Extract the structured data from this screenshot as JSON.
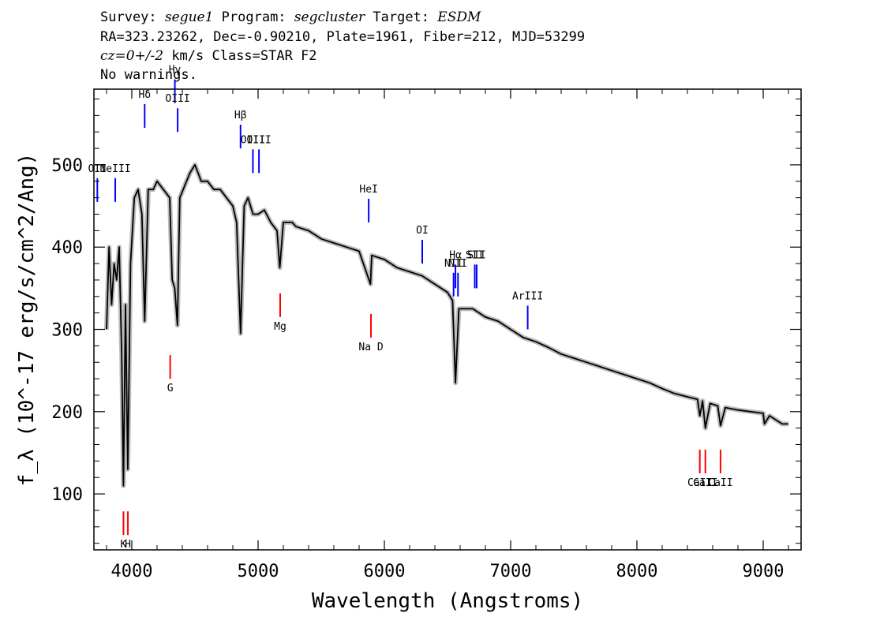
{
  "header": {
    "line1": {
      "survey_label": "Survey:",
      "survey": "segue1",
      "program_label": "Program:",
      "program": "segcluster",
      "target_label": "Target:",
      "target": "ESDM"
    },
    "line2": "RA=323.23262, Dec=-0.90210, Plate=1961, Fiber=212, MJD=53299",
    "line3": {
      "cz": "cz=0+/-2",
      "rest": " km/s Class=STAR F2"
    },
    "line4": "No warnings."
  },
  "chart_data": {
    "type": "line",
    "xlabel": "Wavelength (Angstroms)",
    "ylabel": "f_λ (10^-17 erg/s/cm^2/Ang)",
    "xlim": [
      3700,
      9300
    ],
    "ylim": [
      32,
      592
    ],
    "xticks": [
      4000,
      5000,
      6000,
      7000,
      8000,
      9000
    ],
    "yticks": [
      100,
      200,
      300,
      400,
      500
    ],
    "grid": false,
    "series": [
      {
        "color": "#000000",
        "error_color": "#bbbbbb",
        "x": [
          3800,
          3820,
          3840,
          3860,
          3880,
          3900,
          3920,
          3934,
          3950,
          3968,
          3990,
          4020,
          4050,
          4080,
          4102,
          4130,
          4170,
          4200,
          4250,
          4300,
          4320,
          4340,
          4361,
          4380,
          4420,
          4460,
          4500,
          4550,
          4600,
          4650,
          4700,
          4750,
          4800,
          4830,
          4861,
          4890,
          4920,
          4960,
          5000,
          5050,
          5100,
          5150,
          5172,
          5200,
          5270,
          5300,
          5400,
          5500,
          5600,
          5700,
          5800,
          5890,
          5900,
          6000,
          6100,
          6200,
          6300,
          6400,
          6500,
          6540,
          6563,
          6590,
          6650,
          6700,
          6800,
          6900,
          7000,
          7100,
          7200,
          7300,
          7400,
          7500,
          7600,
          7700,
          7800,
          7900,
          8000,
          8100,
          8200,
          8300,
          8400,
          8480,
          8498,
          8520,
          8542,
          8580,
          8640,
          8662,
          8700,
          8800,
          8900,
          9000,
          9010,
          9050,
          9100,
          9150,
          9200
        ],
        "y": [
          300,
          400,
          330,
          380,
          360,
          400,
          270,
          110,
          330,
          130,
          380,
          460,
          470,
          440,
          310,
          470,
          470,
          480,
          470,
          460,
          360,
          350,
          305,
          460,
          475,
          490,
          500,
          480,
          480,
          470,
          470,
          460,
          450,
          430,
          295,
          450,
          460,
          440,
          440,
          445,
          430,
          420,
          375,
          430,
          430,
          425,
          420,
          410,
          405,
          400,
          395,
          355,
          390,
          385,
          375,
          370,
          365,
          355,
          345,
          335,
          235,
          325,
          325,
          325,
          315,
          310,
          300,
          290,
          285,
          278,
          270,
          265,
          260,
          255,
          250,
          245,
          240,
          235,
          228,
          222,
          218,
          215,
          195,
          213,
          180,
          210,
          207,
          183,
          205,
          202,
          200,
          198,
          185,
          195,
          190,
          185,
          185
        ]
      }
    ],
    "line_markers": {
      "emission": {
        "color": "#0000ff",
        "lines": [
          {
            "label": "OII",
            "x": 3727,
            "y": 455
          },
          {
            "label": "NeIII",
            "x": 3869,
            "y": 455
          },
          {
            "label": "Hδ",
            "x": 4102,
            "y": 545
          },
          {
            "label": "Hγ",
            "x": 4341,
            "y": 575
          },
          {
            "label": "OIII",
            "x": 4363,
            "y": 540
          },
          {
            "label": "Hβ",
            "x": 4861,
            "y": 520
          },
          {
            "label": "OIII",
            "x": 4959,
            "y": 490
          },
          {
            "label": "OIII",
            "x": 5007,
            "y": 490
          },
          {
            "label": "HeI",
            "x": 5876,
            "y": 430
          },
          {
            "label": "OI",
            "x": 6300,
            "y": 380
          },
          {
            "label": "NII",
            "x": 6548,
            "y": 340
          },
          {
            "label": "Hα",
            "x": 6563,
            "y": 350
          },
          {
            "label": "NII",
            "x": 6583,
            "y": 340
          },
          {
            "label": "SII",
            "x": 6716,
            "y": 350
          },
          {
            "label": "SII",
            "x": 6731,
            "y": 350
          },
          {
            "label": "ArIII",
            "x": 7135,
            "y": 300
          }
        ]
      },
      "absorption": {
        "color": "#ff0000",
        "lines": [
          {
            "label": "K",
            "x": 3934,
            "y": 50
          },
          {
            "label": "H",
            "x": 3969,
            "y": 50
          },
          {
            "label": "G",
            "x": 4304,
            "y": 240
          },
          {
            "label": "Mg",
            "x": 5175,
            "y": 315
          },
          {
            "label": "Na D",
            "x": 5894,
            "y": 290
          },
          {
            "label": "CaII",
            "x": 8498,
            "y": 125
          },
          {
            "label": "CaII",
            "x": 8542,
            "y": 125
          },
          {
            "label": "CaII",
            "x": 8662,
            "y": 125
          }
        ]
      }
    }
  }
}
